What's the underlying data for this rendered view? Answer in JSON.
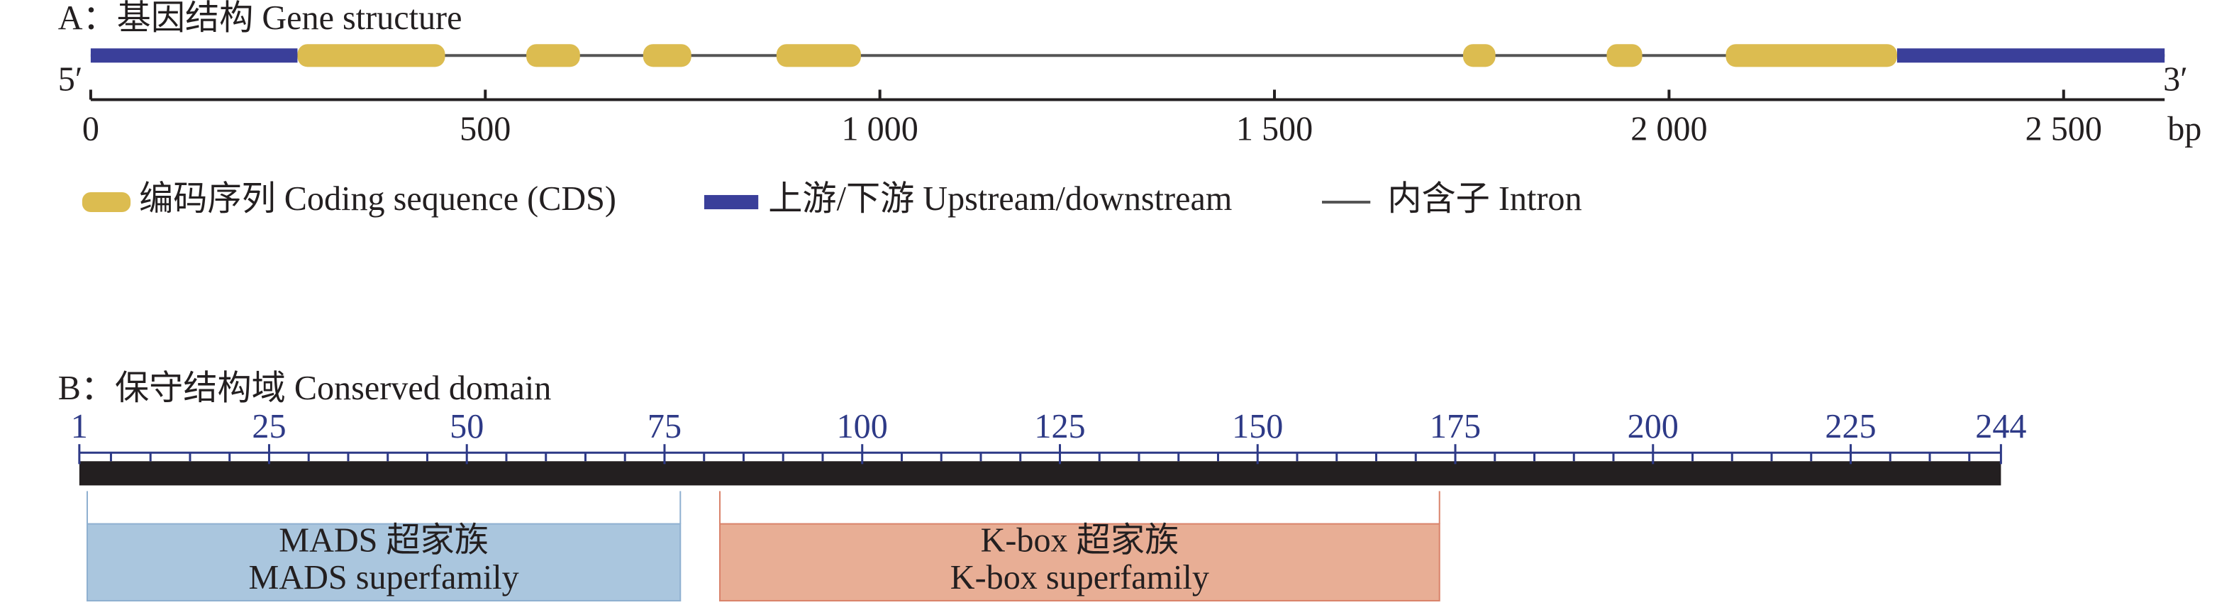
{
  "chart_data": [
    {
      "type": "gene",
      "title": "A：基因结构 Gene structure",
      "end_labels": [
        "5′",
        "3′"
      ],
      "x_unit": "bp",
      "xlim": [
        0,
        2628
      ],
      "xticks": [
        0,
        500,
        {
          "value": 1000,
          "label": "1 000"
        },
        {
          "value": 1500,
          "label": "1 500"
        },
        {
          "value": 2000,
          "label": "2 000"
        },
        {
          "value": 2500,
          "label": "2 500"
        }
      ],
      "intron": {
        "name": "内含子 Intron",
        "color": "#555555"
      },
      "series": [
        {
          "name": "编码序列 Coding sequence (CDS)",
          "color": "#dcbc50",
          "segments": [
            [
              262,
              449
            ],
            [
              552,
              620
            ],
            [
              700,
              761
            ],
            [
              869,
              976
            ],
            [
              1739,
              1780
            ],
            [
              1921,
              1966
            ],
            [
              2072,
              2289
            ]
          ]
        },
        {
          "name": "上游/下游 Upstream/downstream",
          "color": "#3a3f9a",
          "segments": [
            [
              0,
              262
            ],
            [
              2289,
              2628
            ]
          ]
        }
      ]
    },
    {
      "type": "domain",
      "title": "B：保守结构域 Conserved domain",
      "color": "#231f20",
      "xlim": [
        1,
        244
      ],
      "xticks": [
        1,
        25,
        50,
        75,
        100,
        125,
        150,
        175,
        200,
        225,
        244
      ],
      "xminorticks": [
        5,
        10,
        15,
        20,
        30,
        35,
        40,
        45,
        55,
        60,
        65,
        70,
        80,
        85,
        90,
        95,
        105,
        110,
        115,
        120,
        130,
        135,
        140,
        145,
        155,
        160,
        165,
        170,
        180,
        185,
        190,
        195,
        205,
        210,
        215,
        220,
        230,
        235,
        240
      ],
      "domains": [
        {
          "name": "MADS 超家族",
          "subname": "MADS superfamily",
          "start": 2,
          "end": 77,
          "color": "#aac6de",
          "edge": "#8fb0d0"
        },
        {
          "name": "K-box 超家族",
          "subname": "K-box superfamily",
          "start": 82,
          "end": 173,
          "color": "#e8ae95",
          "edge": "#d9826a"
        }
      ]
    }
  ]
}
